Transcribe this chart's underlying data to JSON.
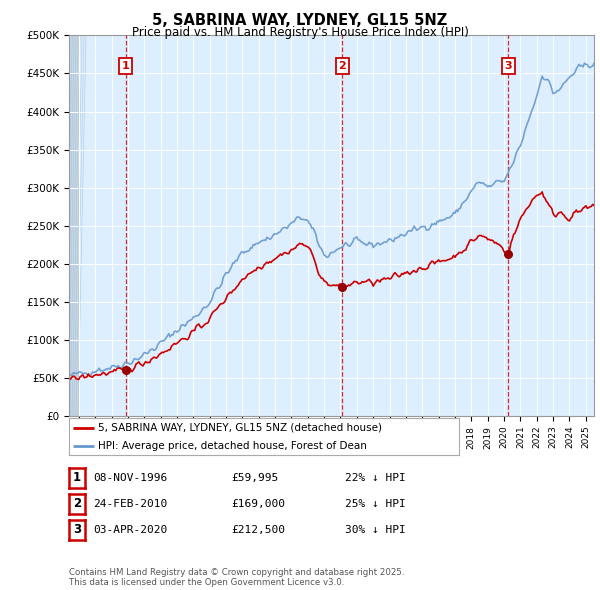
{
  "title": "5, SABRINA WAY, LYDNEY, GL15 5NZ",
  "subtitle": "Price paid vs. HM Land Registry's House Price Index (HPI)",
  "hpi_color": "#6699cc",
  "price_color": "#cc0000",
  "bg_color": "#ffffff",
  "plot_bg_color": "#ddeeff",
  "ylim": [
    0,
    500000
  ],
  "yticks": [
    0,
    50000,
    100000,
    150000,
    200000,
    250000,
    300000,
    350000,
    400000,
    450000,
    500000
  ],
  "ytick_labels": [
    "£0",
    "£50K",
    "£100K",
    "£150K",
    "£200K",
    "£250K",
    "£300K",
    "£350K",
    "£400K",
    "£450K",
    "£500K"
  ],
  "xlim_start": 1993.4,
  "xlim_end": 2025.5,
  "purchases": [
    {
      "year": 1996.86,
      "price": 59995,
      "label": "1"
    },
    {
      "year": 2010.12,
      "price": 169000,
      "label": "2"
    },
    {
      "year": 2020.25,
      "price": 212500,
      "label": "3"
    }
  ],
  "vlines": [
    1996.86,
    2010.12,
    2020.25
  ],
  "legend_entries": [
    "5, SABRINA WAY, LYDNEY, GL15 5NZ (detached house)",
    "HPI: Average price, detached house, Forest of Dean"
  ],
  "table_rows": [
    {
      "num": "1",
      "date": "08-NOV-1996",
      "price": "£59,995",
      "hpi": "22% ↓ HPI"
    },
    {
      "num": "2",
      "date": "24-FEB-2010",
      "price": "£169,000",
      "hpi": "25% ↓ HPI"
    },
    {
      "num": "3",
      "date": "03-APR-2020",
      "price": "£212,500",
      "hpi": "30% ↓ HPI"
    }
  ],
  "footnote": "Contains HM Land Registry data © Crown copyright and database right 2025.\nThis data is licensed under the Open Government Licence v3.0."
}
